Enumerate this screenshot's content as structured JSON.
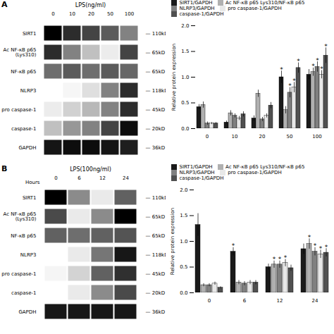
{
  "chart_data": [
    {
      "type": "heatmap",
      "title": "LPS(ng/ml)",
      "annotations": [
        {
          "text": "A"
        }
      ],
      "categories": [
        "0",
        "10",
        "20",
        "50",
        "100"
      ],
      "rows": [
        "SIRT1",
        "Ac NF-κB p65\n(Lys310)",
        "NF-κB p65",
        "NLRP3",
        "pro caspase-1",
        "caspase-1",
        "GAPDH"
      ],
      "row_labels_right": [
        "— 110kD",
        "— 65kD",
        "— 65kD",
        "— 118kD",
        "— 45kD",
        "— 20kD",
        "— 36kD"
      ],
      "cells": [
        [
          0.85,
          0.75,
          0.7,
          0.65,
          0.55
        ],
        [
          0.75,
          0.55,
          0.4,
          0.25,
          0.7
        ],
        [
          0.6,
          0.65,
          0.6,
          0.65,
          0.62
        ],
        [
          0.15,
          0.2,
          0.3,
          0.55,
          0.75
        ],
        [
          0.25,
          0.35,
          0.42,
          0.55,
          0.75
        ],
        [
          0.4,
          0.5,
          0.55,
          0.7,
          0.82
        ],
        [
          0.8,
          0.82,
          0.82,
          0.8,
          0.78
        ]
      ]
    },
    {
      "type": "bar",
      "categories": [
        "0",
        "10",
        "20",
        "50",
        "100"
      ],
      "series": [
        {
          "name": "SIRT1/GAPDH",
          "color": "#1a1a1a",
          "values": [
            0.42,
            0.12,
            0.2,
            1.0,
            1.05
          ],
          "errors": [
            0.05,
            0.03,
            0.05,
            0.12,
            0.1
          ]
        },
        {
          "name": "Ac NF-κB p65 Lys310/NF-κB p65",
          "color": "#b0b0b0",
          "values": [
            0.46,
            0.3,
            0.68,
            0.36,
            1.1
          ],
          "errors": [
            0.06,
            0.05,
            0.07,
            0.07,
            0.08
          ]
        },
        {
          "name": "NLRP3/GAPDH",
          "color": "#808080",
          "values": [
            0.1,
            0.25,
            0.18,
            0.7,
            1.2
          ],
          "errors": [
            0.03,
            0.04,
            0.04,
            0.1,
            0.1
          ]
        },
        {
          "name": "pro caspase-1/GAPDH",
          "color": "#e8e8e8",
          "values": [
            0.1,
            0.2,
            0.25,
            0.8,
            1.05
          ],
          "errors": [
            0.02,
            0.04,
            0.04,
            0.1,
            0.08
          ]
        },
        {
          "name": "caspase-1/GAPDH",
          "color": "#505050",
          "values": [
            0.1,
            0.28,
            0.45,
            1.18,
            1.42
          ],
          "errors": [
            0.02,
            0.05,
            0.06,
            0.1,
            0.15
          ]
        }
      ],
      "ylabel": "Relative protein expression",
      "ylim": [
        0,
        2.0
      ],
      "yticks": [
        {
          "value": 0,
          "label": "0.0"
        },
        0.5,
        {
          "value": 1,
          "label": "1.0"
        },
        1.5,
        {
          "value": 2,
          "label": "2.0"
        }
      ],
      "legend": "upper left",
      "grid": false,
      "annotations": [
        {
          "series": "SIRT1/GAPDH",
          "category": "50",
          "text": "*"
        },
        {
          "series": "Ac NF-κB p65 Lys310/NF-κB p65",
          "category": "100",
          "text": "*"
        },
        {
          "series": "NLRP3/GAPDH",
          "category": "50",
          "text": "*"
        },
        {
          "series": "NLRP3/GAPDH",
          "category": "100",
          "text": "*"
        },
        {
          "series": "pro caspase-1/GAPDH",
          "category": "50",
          "text": "*"
        },
        {
          "series": "pro caspase-1/GAPDH",
          "category": "100",
          "text": "*"
        },
        {
          "series": "caspase-1/GAPDH",
          "category": "50",
          "text": "*"
        },
        {
          "series": "caspase-1/GAPDH",
          "category": "100",
          "text": "*"
        }
      ]
    },
    {
      "type": "heatmap",
      "title": "LPS(100ng/ml)",
      "annotations": [
        {
          "text": "B"
        }
      ],
      "xlabel": "Hours",
      "categories": [
        "0",
        "6",
        "12",
        "24"
      ],
      "rows": [
        "SIRT1",
        "Ac NF-κB p65\n(Lys310)",
        "NF-κB p65",
        "NLRP3",
        "pro caspase-1",
        "caspase-1",
        "GAPDH"
      ],
      "row_labels_right": [
        "— 110kD",
        "— 65kD",
        "— 65kD",
        "— 118kD",
        "— 45kD",
        "— 20kD",
        "— 36kD"
      ],
      "cells": [
        [
          0.85,
          0.55,
          0.3,
          0.65
        ],
        [
          0.7,
          0.3,
          0.55,
          0.85
        ],
        [
          0.65,
          0.62,
          0.65,
          0.68
        ],
        [
          0.2,
          0.3,
          0.6,
          0.8
        ],
        [
          0.25,
          0.38,
          0.65,
          0.75
        ],
        [
          0.2,
          0.3,
          0.55,
          0.7
        ],
        [
          0.8,
          0.8,
          0.8,
          0.8
        ]
      ]
    },
    {
      "type": "bar",
      "categories": [
        "0",
        "6",
        "12",
        "24"
      ],
      "series": [
        {
          "name": "SIRT1/GAPDH",
          "color": "#1a1a1a",
          "values": [
            1.32,
            0.8,
            0.5,
            0.85
          ],
          "errors": [
            0.22,
            0.08,
            0.06,
            0.1
          ]
        },
        {
          "name": "Ac NF-κB p65 Lys310/NF-κB p65",
          "color": "#b0b0b0",
          "values": [
            0.15,
            0.2,
            0.55,
            0.95
          ],
          "errors": [
            0.03,
            0.04,
            0.07,
            0.1
          ]
        },
        {
          "name": "NLRP3/GAPDH",
          "color": "#808080",
          "values": [
            0.15,
            0.18,
            0.55,
            0.8
          ],
          "errors": [
            0.03,
            0.04,
            0.07,
            0.08
          ]
        },
        {
          "name": "pro caspase-1/GAPDH",
          "color": "#e8e8e8",
          "values": [
            0.18,
            0.2,
            0.58,
            0.75
          ],
          "errors": [
            0.03,
            0.04,
            0.07,
            0.08
          ]
        },
        {
          "name": "caspase-1/GAPDH",
          "color": "#505050",
          "values": [
            0.1,
            0.2,
            0.48,
            0.78
          ],
          "errors": [
            0.02,
            0.04,
            0.06,
            0.08
          ]
        }
      ],
      "ylabel": "Relative protein expression",
      "ylim": [
        0,
        2.0
      ],
      "yticks": [
        {
          "value": 0,
          "label": "0.0"
        },
        0.5,
        {
          "value": 1,
          "label": "1.0"
        },
        1.5,
        {
          "value": 2,
          "label": "2.0"
        }
      ],
      "legend": "upper left",
      "grid": false,
      "annotations": [
        {
          "series": "SIRT1/GAPDH",
          "category": "6",
          "text": "*"
        },
        {
          "series": "Ac NF-κB p65 Lys310/NF-κB p65",
          "category": "12",
          "text": "*"
        },
        {
          "series": "Ac NF-κB p65 Lys310/NF-κB p65",
          "category": "24",
          "text": "*"
        },
        {
          "series": "NLRP3/GAPDH",
          "category": "12",
          "text": "*"
        },
        {
          "series": "NLRP3/GAPDH",
          "category": "24",
          "text": "*"
        },
        {
          "series": "pro caspase-1/GAPDH",
          "category": "12",
          "text": "*"
        },
        {
          "series": "pro caspase-1/GAPDH",
          "category": "24",
          "text": "*"
        },
        {
          "series": "caspase-1/GAPDH",
          "category": "24",
          "text": "*"
        }
      ]
    }
  ]
}
